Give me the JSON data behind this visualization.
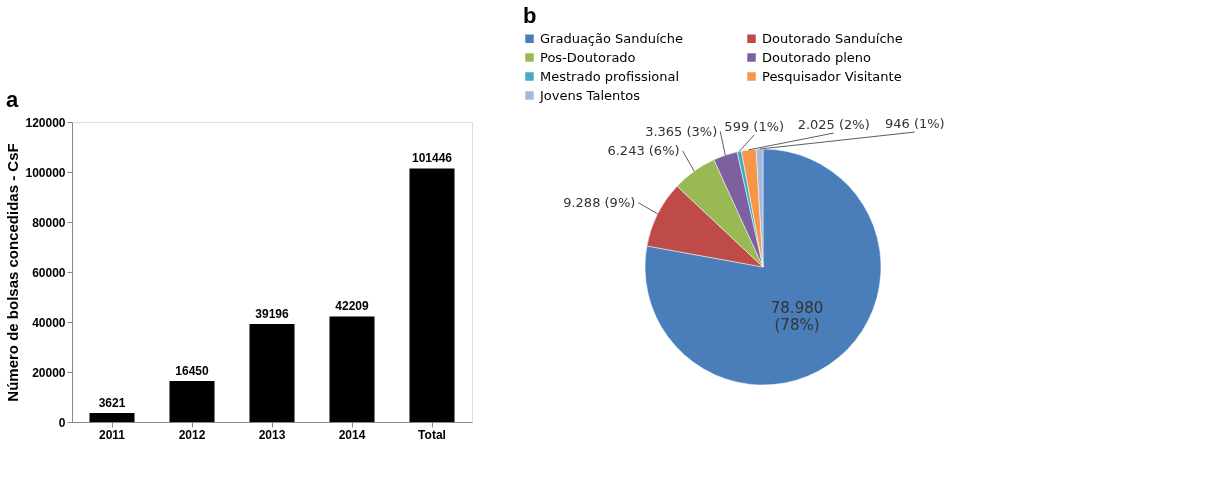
{
  "chart_data": [
    {
      "type": "bar",
      "title": "a",
      "ylabel": "Número de bolsas concedidas - CsF",
      "categories": [
        "2011",
        "2012",
        "2013",
        "2014",
        "Total"
      ],
      "values": [
        3621,
        16450,
        39196,
        42209,
        101446
      ],
      "color": "#000000",
      "ylim": [
        0,
        120000
      ],
      "yticks": [
        0,
        20000,
        40000,
        60000,
        80000,
        100000,
        120000
      ],
      "data_labels": true,
      "grid": false
    },
    {
      "type": "pie",
      "title": "b",
      "categories": [
        "Graduação Sanduíche",
        "Doutorado Sanduíche",
        "Pos-Doutorado",
        "Doutorado pleno",
        "Mestrado profissional",
        "Pesquisador Visitante",
        "Jovens Talentos"
      ],
      "values": [
        78980,
        9288,
        6243,
        3365,
        599,
        2025,
        946
      ],
      "colors": [
        "#4a7ebb",
        "#be4b48",
        "#98b954",
        "#7d60a0",
        "#46aac5",
        "#f79646",
        "#a5b9dc"
      ],
      "value_labels": [
        "78.980 (78%)",
        "9.288 (9%)",
        "6.243 (6%)",
        "3.365 (3%)",
        "599 (1%)",
        "2.025 (2%)",
        "946 (1%)"
      ],
      "legend": "top"
    }
  ]
}
